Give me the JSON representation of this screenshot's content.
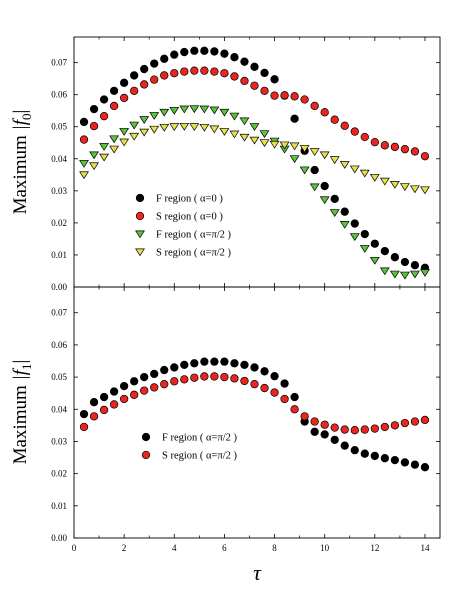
{
  "chart_data": [
    {
      "type": "scatter",
      "ylabel_prefix": "Maximum",
      "ylabel_symbol": "|f",
      "ylabel_sub": "0",
      "ylabel_suffix": "|",
      "xlim": [
        0,
        14.6
      ],
      "ylim": [
        0,
        0.078
      ],
      "yticks": [
        "0.00",
        "0.01",
        "0.02",
        "0.03",
        "0.04",
        "0.05",
        "0.06",
        "0.07"
      ],
      "yticks_values": [
        0,
        0.01,
        0.02,
        0.03,
        0.04,
        0.05,
        0.06,
        0.07
      ],
      "legend_position": "lower-left",
      "series": [
        {
          "name": "F region ( α=0 )",
          "marker": "circle",
          "color": "#000000",
          "x": [
            0.4,
            0.8,
            1.2,
            1.6,
            2.0,
            2.4,
            2.8,
            3.2,
            3.6,
            4.0,
            4.4,
            4.8,
            5.2,
            5.6,
            6.0,
            6.4,
            6.8,
            7.2,
            7.6,
            8.0,
            8.4,
            8.8,
            9.2,
            9.6,
            10.0,
            10.4,
            10.8,
            11.2,
            11.6,
            12.0,
            12.4,
            12.8,
            13.2,
            13.6,
            14.0
          ],
          "y": [
            0.0515,
            0.0555,
            0.0585,
            0.0612,
            0.0637,
            0.066,
            0.068,
            0.0697,
            0.0712,
            0.0725,
            0.0733,
            0.0737,
            0.0737,
            0.0735,
            0.0728,
            0.0717,
            0.0703,
            0.0687,
            0.0668,
            0.0648,
            0.0597,
            0.0525,
            0.0425,
            0.0365,
            0.0315,
            0.0275,
            0.0235,
            0.0198,
            0.0165,
            0.0135,
            0.0112,
            0.0093,
            0.0078,
            0.0068,
            0.006
          ]
        },
        {
          "name": "S region ( α=0 )",
          "marker": "circle",
          "color": "#e8251f",
          "x": [
            0.4,
            0.8,
            1.2,
            1.6,
            2.0,
            2.4,
            2.8,
            3.2,
            3.6,
            4.0,
            4.4,
            4.8,
            5.2,
            5.6,
            6.0,
            6.4,
            6.8,
            7.2,
            7.6,
            8.0,
            8.4,
            8.8,
            9.2,
            9.6,
            10.0,
            10.4,
            10.8,
            11.2,
            11.6,
            12.0,
            12.4,
            12.8,
            13.2,
            13.6,
            14.0
          ],
          "y": [
            0.046,
            0.0502,
            0.0533,
            0.0565,
            0.059,
            0.0612,
            0.0632,
            0.0647,
            0.066,
            0.0667,
            0.0672,
            0.0675,
            0.0675,
            0.0672,
            0.0667,
            0.0657,
            0.0643,
            0.0628,
            0.0612,
            0.0597,
            0.0598,
            0.0595,
            0.0585,
            0.0565,
            0.0545,
            0.0522,
            0.0503,
            0.0485,
            0.0468,
            0.0452,
            0.0442,
            0.0437,
            0.043,
            0.0423,
            0.0408
          ]
        },
        {
          "name": "F region ( α=π/2 )",
          "marker": "triangle-down",
          "color": "#5cc43a",
          "x": [
            0.4,
            0.8,
            1.2,
            1.6,
            2.0,
            2.4,
            2.8,
            3.2,
            3.6,
            4.0,
            4.4,
            4.8,
            5.2,
            5.6,
            6.0,
            6.4,
            6.8,
            7.2,
            7.6,
            8.0,
            8.4,
            8.8,
            9.2,
            9.6,
            10.0,
            10.4,
            10.8,
            11.2,
            11.6,
            12.0,
            12.4,
            12.8,
            13.2,
            13.6,
            14.0
          ],
          "y": [
            0.0385,
            0.0412,
            0.0438,
            0.0462,
            0.0485,
            0.0505,
            0.0522,
            0.0535,
            0.0545,
            0.0551,
            0.0555,
            0.0556,
            0.0555,
            0.0552,
            0.0545,
            0.0533,
            0.0518,
            0.05,
            0.0478,
            0.0455,
            0.043,
            0.04,
            0.0365,
            0.0312,
            0.0272,
            0.0232,
            0.0195,
            0.0157,
            0.012,
            0.0083,
            0.005,
            0.004,
            0.0037,
            0.004,
            0.0045
          ]
        },
        {
          "name": "S region ( α=π/2 )",
          "marker": "triangle-down",
          "color": "#e8e04a",
          "x": [
            0.4,
            0.8,
            1.2,
            1.6,
            2.0,
            2.4,
            2.8,
            3.2,
            3.6,
            4.0,
            4.4,
            4.8,
            5.2,
            5.6,
            6.0,
            6.4,
            6.8,
            7.2,
            7.6,
            8.0,
            8.4,
            8.8,
            9.2,
            9.6,
            10.0,
            10.4,
            10.8,
            11.2,
            11.6,
            12.0,
            12.4,
            12.8,
            13.2,
            13.6,
            14.0
          ],
          "y": [
            0.035,
            0.0378,
            0.0405,
            0.043,
            0.0452,
            0.047,
            0.0483,
            0.0492,
            0.0498,
            0.05,
            0.0501,
            0.05,
            0.0498,
            0.0493,
            0.0485,
            0.0477,
            0.0467,
            0.0458,
            0.045,
            0.0445,
            0.0443,
            0.044,
            0.0432,
            0.0422,
            0.0412,
            0.0397,
            0.0382,
            0.0368,
            0.0355,
            0.0342,
            0.033,
            0.032,
            0.0313,
            0.0306,
            0.0303
          ]
        }
      ]
    },
    {
      "type": "scatter",
      "ylabel_prefix": "Maximum",
      "ylabel_symbol": "|f",
      "ylabel_sub": "1",
      "ylabel_suffix": "|",
      "xlabel": "τ",
      "xlim": [
        0,
        14.6
      ],
      "ylim": [
        0,
        0.078
      ],
      "xticks": [
        "0",
        "2",
        "4",
        "6",
        "8",
        "10",
        "12",
        "14"
      ],
      "xticks_values": [
        0,
        2,
        4,
        6,
        8,
        10,
        12,
        14
      ],
      "yticks": [
        "0.00",
        "0.01",
        "0.02",
        "0.03",
        "0.04",
        "0.05",
        "0.06",
        "0.07"
      ],
      "yticks_values": [
        0,
        0.01,
        0.02,
        0.03,
        0.04,
        0.05,
        0.06,
        0.07
      ],
      "legend_position": "lower-left",
      "series": [
        {
          "name": "F region ( α=π/2 )",
          "marker": "circle",
          "color": "#000000",
          "x": [
            0.4,
            0.8,
            1.2,
            1.6,
            2.0,
            2.4,
            2.8,
            3.2,
            3.6,
            4.0,
            4.4,
            4.8,
            5.2,
            5.6,
            6.0,
            6.4,
            6.8,
            7.2,
            7.6,
            8.0,
            8.4,
            8.8,
            9.2,
            9.6,
            10.0,
            10.4,
            10.8,
            11.2,
            11.6,
            12.0,
            12.4,
            12.8,
            13.2,
            13.6,
            14.0
          ],
          "y": [
            0.0385,
            0.0422,
            0.0438,
            0.0455,
            0.0472,
            0.0487,
            0.05,
            0.051,
            0.0522,
            0.053,
            0.0538,
            0.0543,
            0.0548,
            0.0548,
            0.0548,
            0.0543,
            0.0538,
            0.053,
            0.0518,
            0.0503,
            0.048,
            0.0438,
            0.0362,
            0.033,
            0.0322,
            0.0305,
            0.0287,
            0.0273,
            0.0262,
            0.0255,
            0.0248,
            0.0242,
            0.0235,
            0.0228,
            0.022
          ]
        },
        {
          "name": "S region ( α=π/2 )",
          "marker": "circle",
          "color": "#e8251f",
          "x": [
            0.4,
            0.8,
            1.2,
            1.6,
            2.0,
            2.4,
            2.8,
            3.2,
            3.6,
            4.0,
            4.4,
            4.8,
            5.2,
            5.6,
            6.0,
            6.4,
            6.8,
            7.2,
            7.6,
            8.0,
            8.4,
            8.8,
            9.2,
            9.6,
            10.0,
            10.4,
            10.8,
            11.2,
            11.6,
            12.0,
            12.4,
            12.8,
            13.2,
            13.6,
            14.0
          ],
          "y": [
            0.0345,
            0.0378,
            0.0398,
            0.0415,
            0.0432,
            0.0445,
            0.0458,
            0.0468,
            0.0478,
            0.0487,
            0.0493,
            0.0498,
            0.0502,
            0.0502,
            0.05,
            0.0496,
            0.0488,
            0.0478,
            0.0466,
            0.0452,
            0.0432,
            0.04,
            0.0378,
            0.0362,
            0.0352,
            0.0343,
            0.0337,
            0.0335,
            0.0337,
            0.034,
            0.0345,
            0.035,
            0.0357,
            0.0362,
            0.0367
          ]
        }
      ]
    }
  ]
}
